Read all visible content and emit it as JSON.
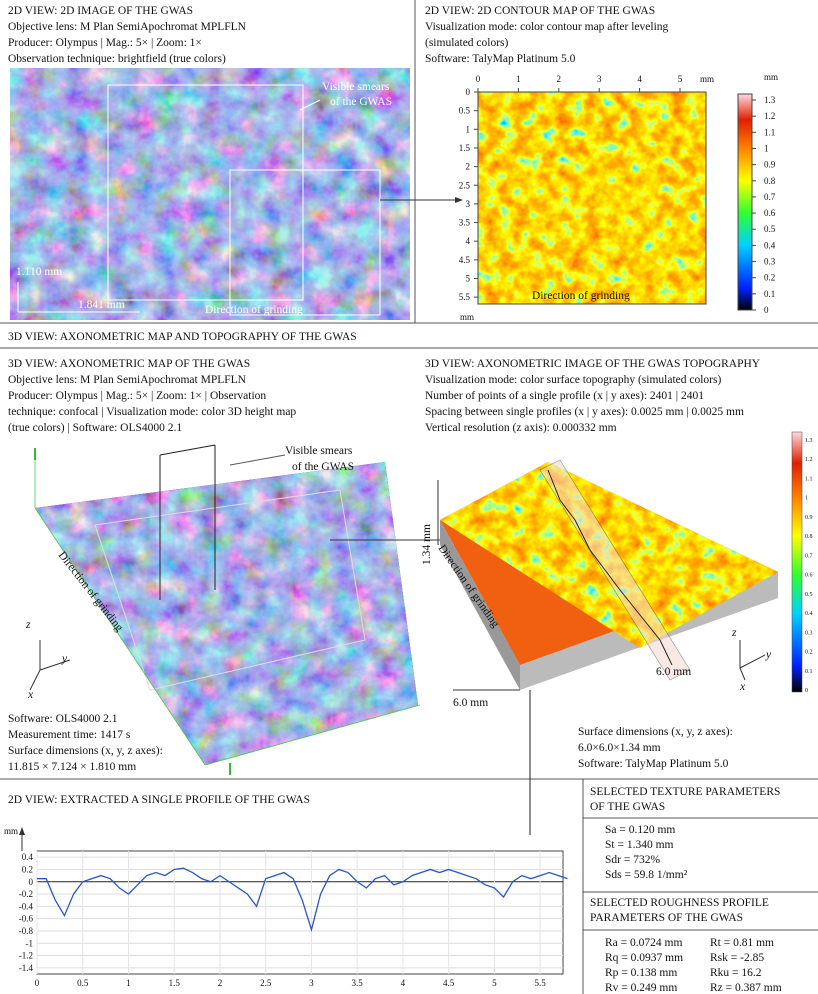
{
  "image_2d": {
    "title": "2D VIEW: 2D IMAGE OF THE GWAS",
    "lines": [
      "Objective lens: M Plan SemiApochromat MPLFLN",
      "Producer: Olympus | Mag.: 5× | Zoom: 1×",
      "Observation technique: brightfield (true colors)"
    ],
    "smears": [
      "Visible smears",
      "of the GWAS"
    ],
    "height": "1.110 mm",
    "width": "1.841 mm",
    "direction": "Direction of grinding"
  },
  "contour_2d": {
    "title": "2D VIEW: 2D CONTOUR MAP OF THE GWAS",
    "lines": [
      "Visualization mode: color contour map after leveling",
      "(simulated colors)",
      "Software: TalyMap Platinum 5.0"
    ],
    "xticks": [
      0,
      1,
      2,
      3,
      4,
      5
    ],
    "x_unit": "mm",
    "yticks": [
      0,
      0.5,
      1,
      1.5,
      2,
      2.5,
      3,
      3.5,
      4,
      4.5,
      5,
      5.5
    ],
    "y_unit": "mm",
    "colorbar_ticks": [
      0,
      0.1,
      0.2,
      0.3,
      0.4,
      0.5,
      0.6,
      0.7,
      0.8,
      0.9,
      1,
      1.1,
      1.2,
      1.3
    ],
    "colorbar_unit": "mm",
    "direction": "Direction of grinding"
  },
  "section_3d": "3D VIEW: AXONOMETRIC MAP AND TOPOGRAPHY OF THE GWAS",
  "map_3d": {
    "title": "3D VIEW: AXONOMETRIC MAP OF THE GWAS",
    "lines": [
      "Objective lens: M Plan SemiApochromat MPLFLN",
      "Producer: Olympus | Mag.: 5× | Zoom: 1× | Observation",
      "technique: confocal | Visualization mode: color 3D height map",
      "(true colors) | Software: OLS4000 2.1"
    ],
    "smears": [
      "Visible smears",
      "of the GWAS"
    ],
    "direction": "Direction of grinding",
    "axes": [
      "z",
      "y",
      "x"
    ],
    "footer": [
      "Software: OLS4000 2.1",
      "Measurement time: 1417 s",
      "Surface dimensions (x, y, z axes):",
      "11.815 × 7.124 × 1.810 mm"
    ]
  },
  "topo_3d": {
    "title": "3D VIEW: AXONOMETRIC IMAGE OF THE GWAS TOPOGRAPHY",
    "lines": [
      "Visualization mode: color surface topography (simulated colors)",
      "Number of points of a single profile (x | y axes): 2401 | 2401",
      "Spacing between single profiles (x | y axes): 0.0025 mm | 0.0025 mm",
      "Vertical resolution (z axis): 0.000332 mm"
    ],
    "height": "1.34 mm",
    "direction": "Direction of grinding",
    "size_y": "6.0 mm",
    "size_x": "6.0 mm",
    "axes": [
      "z",
      "y",
      "x"
    ],
    "footer": [
      "Surface dimensions (x, y, z axes):",
      "6.0×6.0×1.34 mm",
      "Software: TalyMap Platinum 5.0"
    ]
  },
  "profile": {
    "type": "line",
    "title": "2D VIEW: EXTRACTED A SINGLE PROFILE OF THE GWAS",
    "unit": "mm",
    "color": "#2a56c6",
    "x": [
      0,
      0.1,
      0.2,
      0.3,
      0.4,
      0.5,
      0.6,
      0.7,
      0.8,
      0.9,
      1,
      1.1,
      1.2,
      1.3,
      1.4,
      1.5,
      1.6,
      1.7,
      1.8,
      1.9,
      2,
      2.1,
      2.2,
      2.3,
      2.4,
      2.5,
      2.6,
      2.7,
      2.8,
      2.9,
      3,
      3.1,
      3.2,
      3.3,
      3.4,
      3.5,
      3.6,
      3.7,
      3.8,
      3.9,
      4,
      4.1,
      4.2,
      4.3,
      4.4,
      4.5,
      4.6,
      4.7,
      4.8,
      4.9,
      5,
      5.1,
      5.2,
      5.3,
      5.4,
      5.5,
      5.6,
      5.7,
      5.8
    ],
    "values": [
      0.05,
      0.05,
      -0.3,
      -0.55,
      -0.2,
      0,
      0.05,
      0.1,
      0.05,
      -0.1,
      -0.2,
      -0.05,
      0.1,
      0.15,
      0.1,
      0.2,
      0.22,
      0.15,
      0.05,
      0,
      0.1,
      0,
      -0.1,
      -0.2,
      -0.4,
      0.05,
      0.1,
      0.15,
      0.05,
      -0.3,
      -0.78,
      -0.2,
      0.1,
      0.2,
      0.15,
      0,
      -0.1,
      0.05,
      0.1,
      -0.05,
      0,
      0.1,
      0.15,
      0.2,
      0.15,
      0.2,
      0.15,
      0.1,
      0.05,
      -0.05,
      -0.1,
      -0.25,
      0,
      0.1,
      0.05,
      0.1,
      0.15,
      0.1,
      0.05
    ],
    "xlim": [
      0,
      5.75
    ],
    "ylim": [
      -1.5,
      0.5
    ],
    "xticks": [
      0,
      0.5,
      1,
      1.5,
      2,
      2.5,
      3,
      3.5,
      4,
      4.5,
      5,
      5.5
    ],
    "yticks": [
      0.4,
      0.2,
      0,
      -0.2,
      -0.4,
      -0.6,
      -0.8,
      -1,
      -1.2,
      -1.4
    ],
    "grid": true
  },
  "texture": {
    "title": [
      "SELECTED TEXTURE PARAMETERS",
      "OF THE GWAS"
    ],
    "params": [
      "Sa = 0.120 mm",
      "St = 1.340 mm",
      "Sdr = 732%",
      "Sds = 59.8 1/mm²"
    ]
  },
  "roughness": {
    "title": [
      "SELECTED ROUGHNESS PROFILE",
      "PARAMETERS OF THE GWAS"
    ],
    "left": [
      "Ra = 0.0724 mm",
      "Rq = 0.0937 mm",
      "Rp = 0.138 mm",
      "Rv = 0.249 mm"
    ],
    "right": [
      "Rt = 0.81 mm",
      "Rsk = -2.85",
      "Rku = 16.2",
      "Rz = 0.387 mm"
    ]
  }
}
